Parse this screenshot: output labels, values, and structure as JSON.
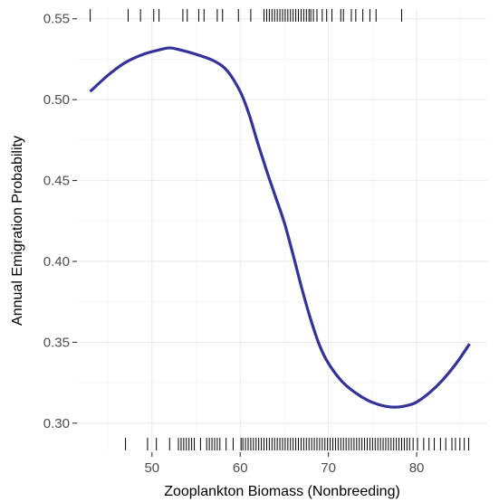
{
  "chart_data": {
    "type": "line",
    "title": "",
    "xlabel": "Zooplankton Biomass (Nonbreeding)",
    "ylabel": "Annual Emigration Probability",
    "xlim": [
      41.5,
      88
    ],
    "ylim": [
      0.282,
      0.556
    ],
    "x_ticks": [
      50,
      60,
      70,
      80
    ],
    "x_tick_labels": [
      "50",
      "60",
      "70",
      "80"
    ],
    "y_ticks": [
      0.3,
      0.35,
      0.4,
      0.45,
      0.5,
      0.55
    ],
    "y_tick_labels": [
      "0.30",
      "0.35",
      "0.40",
      "0.45",
      "0.50",
      "0.55"
    ],
    "grid": true,
    "line_color": "#333399",
    "series": [
      {
        "x": [
          43.0,
          45.0,
          47.0,
          49.0,
          51.0,
          52.0,
          53.0,
          55.0,
          57.0,
          58.5,
          60.0,
          61.0,
          62.0,
          63.0,
          64.0,
          65.0,
          66.0,
          67.0,
          68.0,
          69.0,
          70.0,
          71.5,
          73.0,
          74.5,
          76.0,
          77.0,
          78.0,
          79.0,
          80.0,
          81.5,
          83.0,
          84.5,
          86.0
        ],
        "y": [
          0.505,
          0.515,
          0.523,
          0.528,
          0.531,
          0.532,
          0.531,
          0.528,
          0.524,
          0.518,
          0.505,
          0.491,
          0.473,
          0.456,
          0.44,
          0.424,
          0.404,
          0.383,
          0.364,
          0.348,
          0.337,
          0.326,
          0.319,
          0.314,
          0.311,
          0.31,
          0.31,
          0.311,
          0.313,
          0.319,
          0.327,
          0.337,
          0.349
        ]
      }
    ],
    "rug_top": [
      43.0,
      47.3,
      48.7,
      50.2,
      50.8,
      53.5,
      54.0,
      55.3,
      55.9,
      57.4,
      58.0,
      59.8,
      61.2,
      62.7,
      63.0,
      63.3,
      63.6,
      63.9,
      64.2,
      64.5,
      64.8,
      65.1,
      65.4,
      65.7,
      66.0,
      66.3,
      66.6,
      66.9,
      67.2,
      67.5,
      67.8,
      68.0,
      68.3,
      68.7,
      69.3,
      69.8,
      70.4,
      71.4,
      71.7,
      72.6,
      73.1,
      73.9,
      74.7,
      75.4,
      78.3
    ],
    "rug_bottom": [
      47.0,
      49.5,
      50.5,
      52.0,
      53.0,
      53.3,
      53.6,
      53.9,
      54.2,
      54.5,
      54.8,
      55.5,
      56.2,
      56.5,
      56.8,
      57.1,
      57.4,
      57.7,
      58.4,
      59.2,
      60.1,
      60.3,
      60.6,
      60.9,
      61.2,
      61.5,
      61.8,
      62.1,
      62.4,
      62.7,
      63.0,
      63.3,
      63.6,
      63.9,
      64.2,
      64.5,
      64.8,
      65.1,
      65.4,
      65.7,
      66.0,
      66.3,
      66.6,
      66.9,
      67.2,
      67.5,
      67.8,
      68.1,
      68.4,
      68.7,
      69.0,
      69.3,
      69.6,
      69.9,
      70.2,
      70.5,
      70.8,
      71.1,
      71.4,
      71.7,
      72.0,
      72.3,
      72.6,
      72.9,
      73.2,
      73.5,
      73.8,
      74.1,
      74.4,
      74.7,
      75.0,
      75.3,
      75.6,
      75.9,
      76.2,
      76.5,
      76.8,
      77.1,
      77.4,
      77.7,
      78.0,
      78.3,
      78.6,
      78.9,
      79.2,
      79.6,
      80.1,
      80.8,
      81.4,
      82.0,
      82.7,
      83.3,
      84.0,
      84.4,
      84.9,
      85.4,
      85.9
    ]
  }
}
